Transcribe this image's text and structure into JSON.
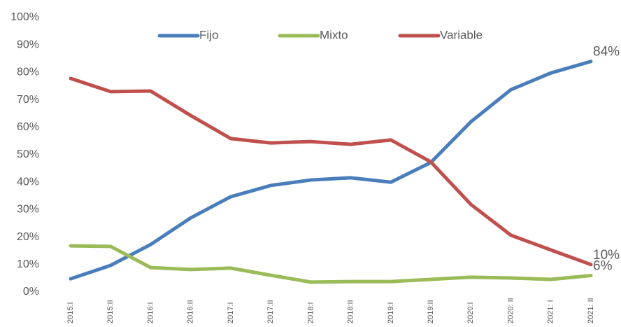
{
  "chart_data": {
    "type": "line",
    "categories": [
      "2015:I",
      "2015:II",
      "2016:I",
      "2016:II",
      "2017:I",
      "2017:II",
      "2018:I",
      "2018:II",
      "2019:I",
      "2019:II",
      "2020:I",
      "2020: II",
      "2021: I",
      "2021: II"
    ],
    "series": [
      {
        "name": "Fijo",
        "color": "#4a7ebb",
        "values": [
          4.8,
          9.7,
          17.3,
          27,
          34.7,
          38.8,
          40.8,
          41.6,
          40,
          47.2,
          62,
          73.7,
          79.8,
          84
        ],
        "value_labels": [
          null,
          null,
          null,
          null,
          null,
          null,
          null,
          null,
          null,
          null,
          null,
          null,
          null,
          "84%"
        ]
      },
      {
        "name": "Mixto",
        "color": "#9bbb59",
        "values": [
          16.8,
          16.6,
          8.9,
          8.2,
          8.7,
          6.1,
          3.6,
          3.8,
          3.8,
          4.6,
          5.4,
          5.1,
          4.6,
          6
        ],
        "value_labels": [
          null,
          null,
          null,
          null,
          null,
          null,
          null,
          null,
          null,
          null,
          null,
          null,
          null,
          "6%"
        ]
      },
      {
        "name": "Variable",
        "color": "#c0504d",
        "values": [
          77.8,
          73,
          73.2,
          64.3,
          55.9,
          54.3,
          54.8,
          53.8,
          55.4,
          47.4,
          31.9,
          20.7,
          15.3,
          10
        ],
        "value_labels": [
          null,
          null,
          null,
          null,
          null,
          null,
          null,
          null,
          null,
          null,
          null,
          null,
          null,
          "10%"
        ]
      }
    ],
    "ylim": [
      0,
      100
    ],
    "yticks": [
      {
        "value": 0,
        "label": "0%"
      },
      {
        "value": 10,
        "label": "10%"
      },
      {
        "value": 20,
        "label": "20%"
      },
      {
        "value": 30,
        "label": "30%"
      },
      {
        "value": 40,
        "label": "40%"
      },
      {
        "value": 50,
        "label": "50%"
      },
      {
        "value": 60,
        "label": "60%"
      },
      {
        "value": 70,
        "label": "70%"
      },
      {
        "value": 80,
        "label": "80%"
      },
      {
        "value": 90,
        "label": "90%"
      },
      {
        "value": 100,
        "label": "100%"
      }
    ],
    "grid": false,
    "legend": "top"
  }
}
